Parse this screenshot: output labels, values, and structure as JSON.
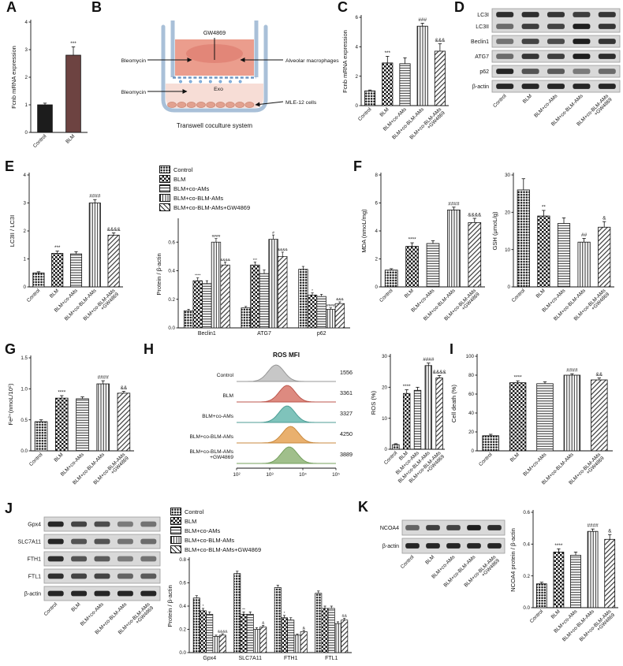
{
  "conditions": [
    "Control",
    "BLM",
    "BLM+co-AMs",
    "BLM+co-BLM-AMs",
    "BLM+co-BLM-AMs+GW4869"
  ],
  "panels": {
    "a": {
      "letter": "A",
      "chart": {
        "type": "bar",
        "ylabel": "Fcnb mRNA expression",
        "ylim": [
          0,
          4
        ],
        "yticks": [
          "0",
          "1",
          "2",
          "3",
          "4"
        ],
        "categories": [
          "Control",
          "BLM"
        ],
        "values": [
          1.0,
          2.8
        ],
        "errors": [
          0.06,
          0.3
        ],
        "sig": [
          "",
          "***"
        ],
        "fills": [
          "#1c1c1c",
          "#6d4341"
        ]
      }
    },
    "b": {
      "letter": "B",
      "diagram": {
        "gw4869": "GW4869",
        "bleomycin_top": "Bleomycin",
        "bleomycin_bottom": "Bleomycin",
        "alveolar": "Alveolar macrophages",
        "exo": "Exo",
        "mle12": "MLE-12 cells",
        "caption": "Transwell coculture system"
      }
    },
    "c": {
      "letter": "C",
      "chart": {
        "type": "bar",
        "ylabel": "Fcnb mRNA expression",
        "ylim": [
          0,
          6
        ],
        "yticks": [
          "0",
          "2",
          "4",
          "6"
        ],
        "categories": "@conditions",
        "values": [
          1.0,
          2.9,
          2.85,
          5.4,
          3.7
        ],
        "errors": [
          0.06,
          0.45,
          0.4,
          0.2,
          0.5
        ],
        "sig": [
          "",
          "***",
          "",
          "###",
          "&&&"
        ]
      }
    },
    "d": {
      "letter": "D",
      "blot": {
        "lanes": "@conditions",
        "rows": [
          {
            "label": "LC3I",
            "group": 0,
            "bands": [
              0.85,
              0.85,
              0.8,
              0.75,
              0.8
            ]
          },
          {
            "label": "LC3II",
            "group": 0,
            "bands": [
              0.45,
              0.75,
              0.7,
              0.95,
              0.8
            ]
          },
          {
            "label": "Beclin1",
            "group": 1,
            "bands": [
              0.4,
              0.7,
              0.65,
              0.95,
              0.8
            ]
          },
          {
            "label": "ATG7",
            "group": 2,
            "bands": [
              0.45,
              0.8,
              0.75,
              0.95,
              0.85
            ]
          },
          {
            "label": "p62",
            "group": 3,
            "bands": [
              0.9,
              0.6,
              0.55,
              0.35,
              0.45
            ]
          },
          {
            "label": "β-actin",
            "group": 4,
            "bands": [
              0.9,
              0.9,
              0.9,
              0.9,
              0.9
            ]
          }
        ]
      }
    },
    "e": {
      "letter": "E",
      "chart_left": {
        "type": "bar",
        "ylabel": "LC3II / LC3I",
        "ylim": [
          0,
          4
        ],
        "yticks": [
          "0",
          "1",
          "2",
          "3",
          "4"
        ],
        "categories": "@conditions",
        "values": [
          0.5,
          1.2,
          1.18,
          3.0,
          1.85
        ],
        "errors": [
          0.04,
          0.08,
          0.08,
          0.12,
          0.08
        ],
        "sig": [
          "",
          "***",
          "",
          "####",
          "&&&&"
        ]
      },
      "chart_right": {
        "type": "grouped-bar",
        "ylabel": "Protein / β-actin",
        "ylim": [
          0,
          0.75
        ],
        "yticks": [
          "0.0",
          "0.2",
          "0.4",
          "0.6"
        ],
        "groups": [
          "Beclin1",
          "ATG7",
          "p62"
        ],
        "series": [
          {
            "name": "Control",
            "values": [
              0.12,
              0.14,
              0.41
            ],
            "errors": [
              0.01,
              0.01,
              0.02
            ],
            "sig": [
              "",
              "",
              ""
            ]
          },
          {
            "name": "BLM",
            "values": [
              0.33,
              0.44,
              0.23
            ],
            "errors": [
              0.02,
              0.02,
              0.015
            ],
            "sig": [
              "****",
              "***",
              "*"
            ]
          },
          {
            "name": "BLM+co-AMs",
            "values": [
              0.31,
              0.38,
              0.22
            ],
            "errors": [
              0.02,
              0.025,
              0.015
            ],
            "sig": [
              "",
              "",
              ""
            ]
          },
          {
            "name": "BLM+co-BLM-AMs",
            "values": [
              0.6,
              0.62,
              0.13
            ],
            "errors": [
              0.025,
              0.03,
              0.01
            ],
            "sig": [
              "####",
              "#",
              "####"
            ]
          },
          {
            "name": "BLM+co-BLM-AMs+GW4869",
            "values": [
              0.44,
              0.5,
              0.17
            ],
            "errors": [
              0.02,
              0.03,
              0.012
            ],
            "sig": [
              "&&&&",
              "&&&&",
              "&&&"
            ]
          }
        ]
      }
    },
    "f": {
      "letter": "F",
      "chart_mda": {
        "type": "bar",
        "ylabel": "MDA (nmoL/mg)",
        "ylim": [
          0,
          8
        ],
        "yticks": [
          "0",
          "2",
          "4",
          "6",
          "8"
        ],
        "categories": "@conditions",
        "values": [
          1.2,
          2.9,
          3.1,
          5.5,
          4.6
        ],
        "errors": [
          0.1,
          0.25,
          0.2,
          0.2,
          0.3
        ],
        "sig": [
          "",
          "****",
          "",
          "####",
          "&&&&"
        ]
      },
      "chart_gsh": {
        "type": "bar",
        "ylabel": "GSH (μmoL/g)",
        "ylim": [
          0,
          30
        ],
        "yticks": [
          "0",
          "10",
          "20",
          "30"
        ],
        "categories": "@conditions",
        "values": [
          26,
          19,
          17,
          12,
          16
        ],
        "errors": [
          3,
          1.5,
          1.5,
          1,
          1.5
        ],
        "sig": [
          "",
          "**",
          "",
          "##",
          "&"
        ]
      }
    },
    "g": {
      "letter": "G",
      "chart": {
        "type": "bar",
        "ylabel": "Fe²⁺(nmoL/10⁶)",
        "ylim": [
          0,
          1.5
        ],
        "yticks": [
          "0.0",
          "0.5",
          "1.0",
          "1.5"
        ],
        "categories": "@conditions",
        "values": [
          0.47,
          0.85,
          0.84,
          1.08,
          0.93
        ],
        "errors": [
          0.03,
          0.04,
          0.03,
          0.05,
          0.03
        ],
        "sig": [
          "",
          "****",
          "",
          "####",
          "&&"
        ]
      }
    },
    "h": {
      "letter": "H",
      "flow": {
        "title": "ROS MFI",
        "xticks": [
          "10²",
          "10³",
          "10⁴",
          "10⁵"
        ],
        "rows": [
          {
            "value": 1556,
            "fill": "#c7c7c7",
            "stroke": "#979797"
          },
          {
            "value": 3361,
            "fill": "#dd8a80",
            "stroke": "#bc564c"
          },
          {
            "value": 3327,
            "fill": "#7fc3bb",
            "stroke": "#4d9e96"
          },
          {
            "value": 4250,
            "fill": "#e9b06e",
            "stroke": "#c98a3f"
          },
          {
            "value": 3889,
            "fill": "#a0bf8b",
            "stroke": "#75a05e"
          }
        ]
      },
      "chart": {
        "type": "bar",
        "ylabel": "ROS (%)",
        "ylim": [
          0,
          30
        ],
        "yticks": [
          "0",
          "10",
          "20",
          "30"
        ],
        "categories": "@conditions",
        "values": [
          1.5,
          18,
          19,
          27,
          23
        ],
        "errors": [
          0.3,
          1.2,
          1,
          0.8,
          0.8
        ],
        "sig": [
          "",
          "****",
          "",
          "####",
          "&&&&"
        ]
      }
    },
    "i": {
      "letter": "I",
      "chart": {
        "type": "bar",
        "ylabel": "Cell death (%)",
        "ylim": [
          0,
          100
        ],
        "yticks": [
          "0",
          "20",
          "40",
          "60",
          "80",
          "100"
        ],
        "categories": "@conditions",
        "values": [
          16,
          72,
          71,
          80,
          75
        ],
        "errors": [
          1.5,
          2,
          2,
          1.5,
          2
        ],
        "sig": [
          "",
          "****",
          "",
          "####",
          "&&"
        ]
      }
    },
    "j": {
      "letter": "J",
      "blot": {
        "lanes": "@conditions",
        "rows": [
          {
            "label": "Gpx4",
            "group": 0,
            "bands": [
              0.9,
              0.7,
              0.65,
              0.35,
              0.4
            ]
          },
          {
            "label": "SLC7A11",
            "group": 1,
            "bands": [
              0.9,
              0.6,
              0.6,
              0.4,
              0.45
            ]
          },
          {
            "label": "FTH1",
            "group": 2,
            "bands": [
              0.85,
              0.6,
              0.55,
              0.35,
              0.4
            ]
          },
          {
            "label": "FTL1",
            "group": 3,
            "bands": [
              0.85,
              0.7,
              0.7,
              0.5,
              0.55
            ]
          },
          {
            "label": "β-actin",
            "group": 4,
            "bands": [
              0.9,
              0.9,
              0.9,
              0.9,
              0.9
            ]
          }
        ]
      },
      "chart": {
        "type": "grouped-bar",
        "ylabel": "Protein / β-actin",
        "ylim": [
          0,
          0.8
        ],
        "yticks": [
          "0.0",
          "0.2",
          "0.4",
          "0.6",
          "0.8"
        ],
        "groups": [
          "Gpx4",
          "SLC7A11",
          "FTH1",
          "FTL1"
        ],
        "series": [
          {
            "name": "Control",
            "values": [
              0.47,
              0.68,
              0.56,
              0.51
            ],
            "errors": [
              0.02,
              0.02,
              0.02,
              0.02
            ],
            "sig": [
              "",
              "",
              "",
              ""
            ]
          },
          {
            "name": "BLM",
            "values": [
              0.36,
              0.33,
              0.3,
              0.38
            ],
            "errors": [
              0.02,
              0.02,
              0.02,
              0.02
            ],
            "sig": [
              "*",
              "**",
              "*",
              ""
            ]
          },
          {
            "name": "BLM+co-AMs",
            "values": [
              0.33,
              0.33,
              0.28,
              0.38
            ],
            "errors": [
              0.02,
              0.02,
              0.02,
              0.02
            ],
            "sig": [
              "",
              "",
              "",
              ""
            ]
          },
          {
            "name": "BLM+co-BLM-AMs",
            "values": [
              0.14,
              0.2,
              0.15,
              0.25
            ],
            "errors": [
              0.01,
              0.015,
              0.01,
              0.015
            ],
            "sig": [
              "",
              "",
              "",
              ""
            ]
          },
          {
            "name": "BLM+co-BLM-AMs+GW4869",
            "values": [
              0.15,
              0.22,
              0.18,
              0.28
            ],
            "errors": [
              0.012,
              0.015,
              0.012,
              0.015
            ],
            "sig": [
              "&&&&",
              "&",
              "&",
              "&&"
            ]
          }
        ]
      }
    },
    "k": {
      "letter": "K",
      "blot": {
        "lanes": "@conditions",
        "rows": [
          {
            "label": "NCOA4",
            "group": 0,
            "bands": [
              0.5,
              0.75,
              0.7,
              0.95,
              0.85
            ]
          },
          {
            "label": "β-actin",
            "group": 1,
            "bands": [
              0.9,
              0.9,
              0.9,
              0.9,
              0.9
            ]
          }
        ]
      },
      "chart": {
        "type": "bar",
        "ylabel": "NCOA4 protein / β-actin",
        "ylim": [
          0,
          0.6
        ],
        "yticks": [
          "0.0",
          "0.2",
          "0.4",
          "0.6"
        ],
        "categories": "@conditions",
        "values": [
          0.15,
          0.35,
          0.33,
          0.48,
          0.43
        ],
        "errors": [
          0.01,
          0.02,
          0.02,
          0.015,
          0.03
        ],
        "sig": [
          "",
          "****",
          "",
          "####",
          "&"
        ]
      }
    }
  }
}
